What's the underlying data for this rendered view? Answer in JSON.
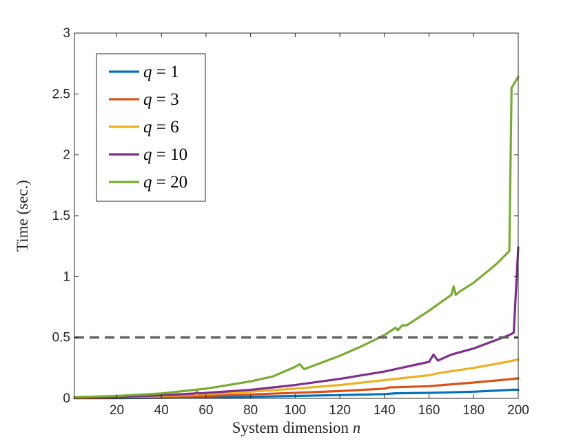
{
  "chart_data": {
    "type": "line",
    "title": "",
    "xlabel": {
      "text": "System dimension",
      "var": "n"
    },
    "ylabel": "Time (sec.)",
    "xlim": [
      1,
      200
    ],
    "ylim": [
      0,
      3
    ],
    "xticks": [
      20,
      40,
      60,
      80,
      100,
      120,
      140,
      160,
      180,
      200
    ],
    "yticks": [
      0,
      0.5,
      1,
      1.5,
      2,
      2.5,
      3
    ],
    "ytick_labels": [
      "0",
      "0.5",
      "1",
      "1.5",
      "2",
      "2.5",
      "3"
    ],
    "grid": false,
    "legend_position": "top-left",
    "reference_line": {
      "y": 0.5,
      "style": "dashed",
      "color": "#636363"
    },
    "series": [
      {
        "name": "q = 1",
        "var": "q",
        "value": "1",
        "color": "#0072BD",
        "points": [
          [
            1,
            0.002
          ],
          [
            20,
            0.002
          ],
          [
            40,
            0.005
          ],
          [
            60,
            0.008
          ],
          [
            80,
            0.013
          ],
          [
            100,
            0.02
          ],
          [
            120,
            0.027
          ],
          [
            140,
            0.035
          ],
          [
            145,
            0.042
          ],
          [
            160,
            0.045
          ],
          [
            180,
            0.055
          ],
          [
            195,
            0.068
          ],
          [
            198,
            0.072
          ],
          [
            200,
            0.07
          ]
        ]
      },
      {
        "name": "q = 3",
        "var": "q",
        "value": "3",
        "color": "#D95319",
        "points": [
          [
            1,
            0.003
          ],
          [
            20,
            0.005
          ],
          [
            40,
            0.01
          ],
          [
            60,
            0.02
          ],
          [
            80,
            0.032
          ],
          [
            100,
            0.045
          ],
          [
            120,
            0.06
          ],
          [
            140,
            0.08
          ],
          [
            142,
            0.09
          ],
          [
            160,
            0.1
          ],
          [
            180,
            0.13
          ],
          [
            195,
            0.155
          ],
          [
            200,
            0.165
          ]
        ]
      },
      {
        "name": "q = 6",
        "var": "q",
        "value": "6",
        "color": "#EDB120",
        "points": [
          [
            1,
            0.004
          ],
          [
            20,
            0.008
          ],
          [
            40,
            0.018
          ],
          [
            60,
            0.035
          ],
          [
            80,
            0.055
          ],
          [
            100,
            0.08
          ],
          [
            120,
            0.11
          ],
          [
            140,
            0.15
          ],
          [
            160,
            0.19
          ],
          [
            165,
            0.21
          ],
          [
            180,
            0.25
          ],
          [
            195,
            0.3
          ],
          [
            200,
            0.32
          ]
        ]
      },
      {
        "name": "q = 10",
        "var": "q",
        "value": "10",
        "color": "#7E2F8E",
        "points": [
          [
            1,
            0.005
          ],
          [
            20,
            0.012
          ],
          [
            40,
            0.025
          ],
          [
            55,
            0.04
          ],
          [
            56,
            0.05
          ],
          [
            57,
            0.04
          ],
          [
            60,
            0.045
          ],
          [
            80,
            0.07
          ],
          [
            100,
            0.11
          ],
          [
            120,
            0.16
          ],
          [
            140,
            0.22
          ],
          [
            160,
            0.3
          ],
          [
            162,
            0.36
          ],
          [
            164,
            0.31
          ],
          [
            170,
            0.36
          ],
          [
            180,
            0.41
          ],
          [
            196,
            0.52
          ],
          [
            198,
            0.54
          ],
          [
            199,
            0.9
          ],
          [
            200,
            1.24
          ]
        ]
      },
      {
        "name": "q = 20",
        "var": "q",
        "value": "20",
        "color": "#77AC30",
        "points": [
          [
            1,
            0.01
          ],
          [
            20,
            0.02
          ],
          [
            40,
            0.04
          ],
          [
            60,
            0.08
          ],
          [
            80,
            0.14
          ],
          [
            90,
            0.18
          ],
          [
            100,
            0.26
          ],
          [
            102,
            0.28
          ],
          [
            104,
            0.24
          ],
          [
            120,
            0.35
          ],
          [
            130,
            0.43
          ],
          [
            140,
            0.52
          ],
          [
            145,
            0.58
          ],
          [
            146,
            0.56
          ],
          [
            148,
            0.6
          ],
          [
            150,
            0.6
          ],
          [
            160,
            0.72
          ],
          [
            170,
            0.85
          ],
          [
            171,
            0.92
          ],
          [
            172,
            0.85
          ],
          [
            174,
            0.88
          ],
          [
            180,
            0.95
          ],
          [
            190,
            1.1
          ],
          [
            196,
            1.21
          ],
          [
            197,
            2.55
          ],
          [
            198,
            2.58
          ],
          [
            200,
            2.64
          ]
        ]
      }
    ]
  }
}
